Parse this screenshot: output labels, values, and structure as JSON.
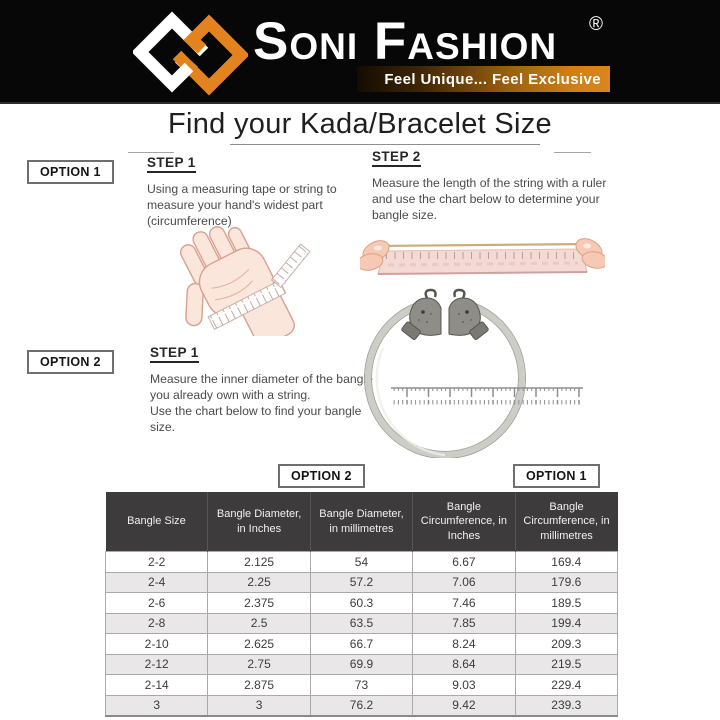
{
  "brand": {
    "name": "Soni Fashion",
    "registered": "®",
    "tagline": "Feel Unique... Feel Exclusive"
  },
  "page_title": "Find your Kada/Bracelet Size",
  "options": {
    "option1": {
      "label": "OPTION 1",
      "step1": {
        "heading": "STEP 1",
        "lines": [
          "Using a measuring tape or string to",
          "measure your hand's widest part",
          "(circumference)"
        ]
      },
      "step2": {
        "heading": "STEP 2",
        "lines": [
          "Measure the length of the string with a ruler",
          "and use the chart below to determine your",
          "bangle size."
        ]
      }
    },
    "option2": {
      "label": "OPTION 2",
      "step1": {
        "heading": "STEP 1",
        "lines": [
          "Measure the inner diameter of the bangle",
          "you already own with a string.",
          "Use the chart below to find your bangle",
          "size."
        ]
      }
    }
  },
  "size_table": {
    "column_group_labels": {
      "diameter": "OPTION 2",
      "circumference": "OPTION 1"
    },
    "headers": [
      "Bangle Size",
      "Bangle Diameter, in Inches",
      "Bangle Diameter, in millimetres",
      "Bangle Circumference, in Inches",
      "Bangle Circumference, in millimetres"
    ],
    "rows": [
      [
        "2-2",
        "2.125",
        "54",
        "6.67",
        "169.4"
      ],
      [
        "2-4",
        "2.25",
        "57.2",
        "7.06",
        "179.6"
      ],
      [
        "2-6",
        "2.375",
        "60.3",
        "7.46",
        "189.5"
      ],
      [
        "2-8",
        "2.5",
        "63.5",
        "7.85",
        "199.4"
      ],
      [
        "2-10",
        "2.625",
        "66.7",
        "8.24",
        "209.3"
      ],
      [
        "2-12",
        "2.75",
        "69.9",
        "8.64",
        "219.5"
      ],
      [
        "2-14",
        "2.875",
        "73",
        "9.03",
        "229.4"
      ],
      [
        "3",
        "3",
        "76.2",
        "9.42",
        "239.3"
      ]
    ]
  },
  "illustrations": {
    "hand_icon": "hand-with-measuring-tape",
    "ruler_icon": "string-measured-with-ruler",
    "kada_icon": "kada-inner-diameter-ruler"
  },
  "colors": {
    "logo_orange": "#e3831d",
    "header_bg": "#070707",
    "table_header_bg": "#3d3b3c",
    "row_alt": "#e9e7e8"
  }
}
